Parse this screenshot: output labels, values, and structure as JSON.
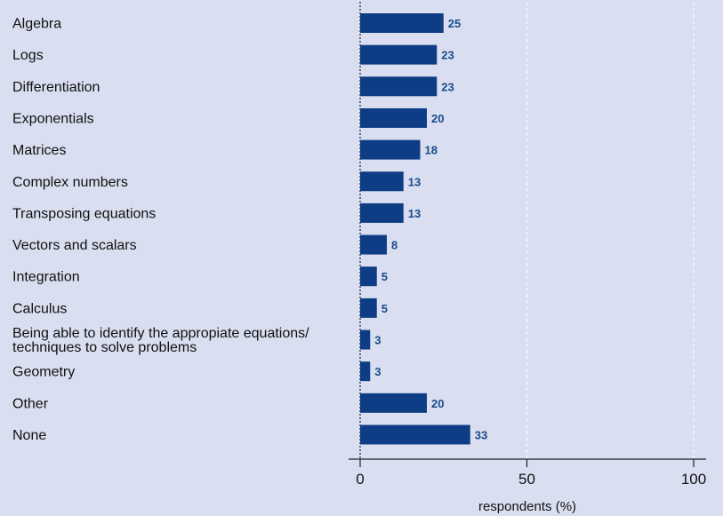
{
  "chart_data": {
    "type": "bar",
    "orientation": "horizontal",
    "categories": [
      "Algebra",
      "Logs",
      "Differentiation",
      "Exponentials",
      "Matrices",
      "Complex numbers",
      "Transposing equations",
      "Vectors and scalars",
      "Integration",
      "Calculus",
      "Being able to identify the appropiate equations/\ntechniques to solve problems",
      "Geometry",
      "Other",
      "None"
    ],
    "values": [
      25,
      23,
      23,
      20,
      18,
      13,
      13,
      8,
      5,
      5,
      3,
      3,
      20,
      33
    ],
    "value_labels": [
      "25",
      "23",
      "23",
      "20",
      "18",
      "13",
      "13",
      "8",
      "5",
      "5",
      "3",
      "3",
      "20",
      "33"
    ],
    "xlabel": "respondents (%)",
    "xlim": [
      0,
      100
    ],
    "xticks": [
      0,
      50,
      100
    ],
    "xtick_labels": [
      "0",
      "50",
      "100"
    ],
    "grid": "vertical dashed at 50 and 100",
    "legend": "none",
    "colors": {
      "bar": "#0f3d85",
      "value_label": "#1b4a8c",
      "background": "#d9dff0",
      "grid": "#ffffff",
      "axis": "#222222"
    }
  }
}
